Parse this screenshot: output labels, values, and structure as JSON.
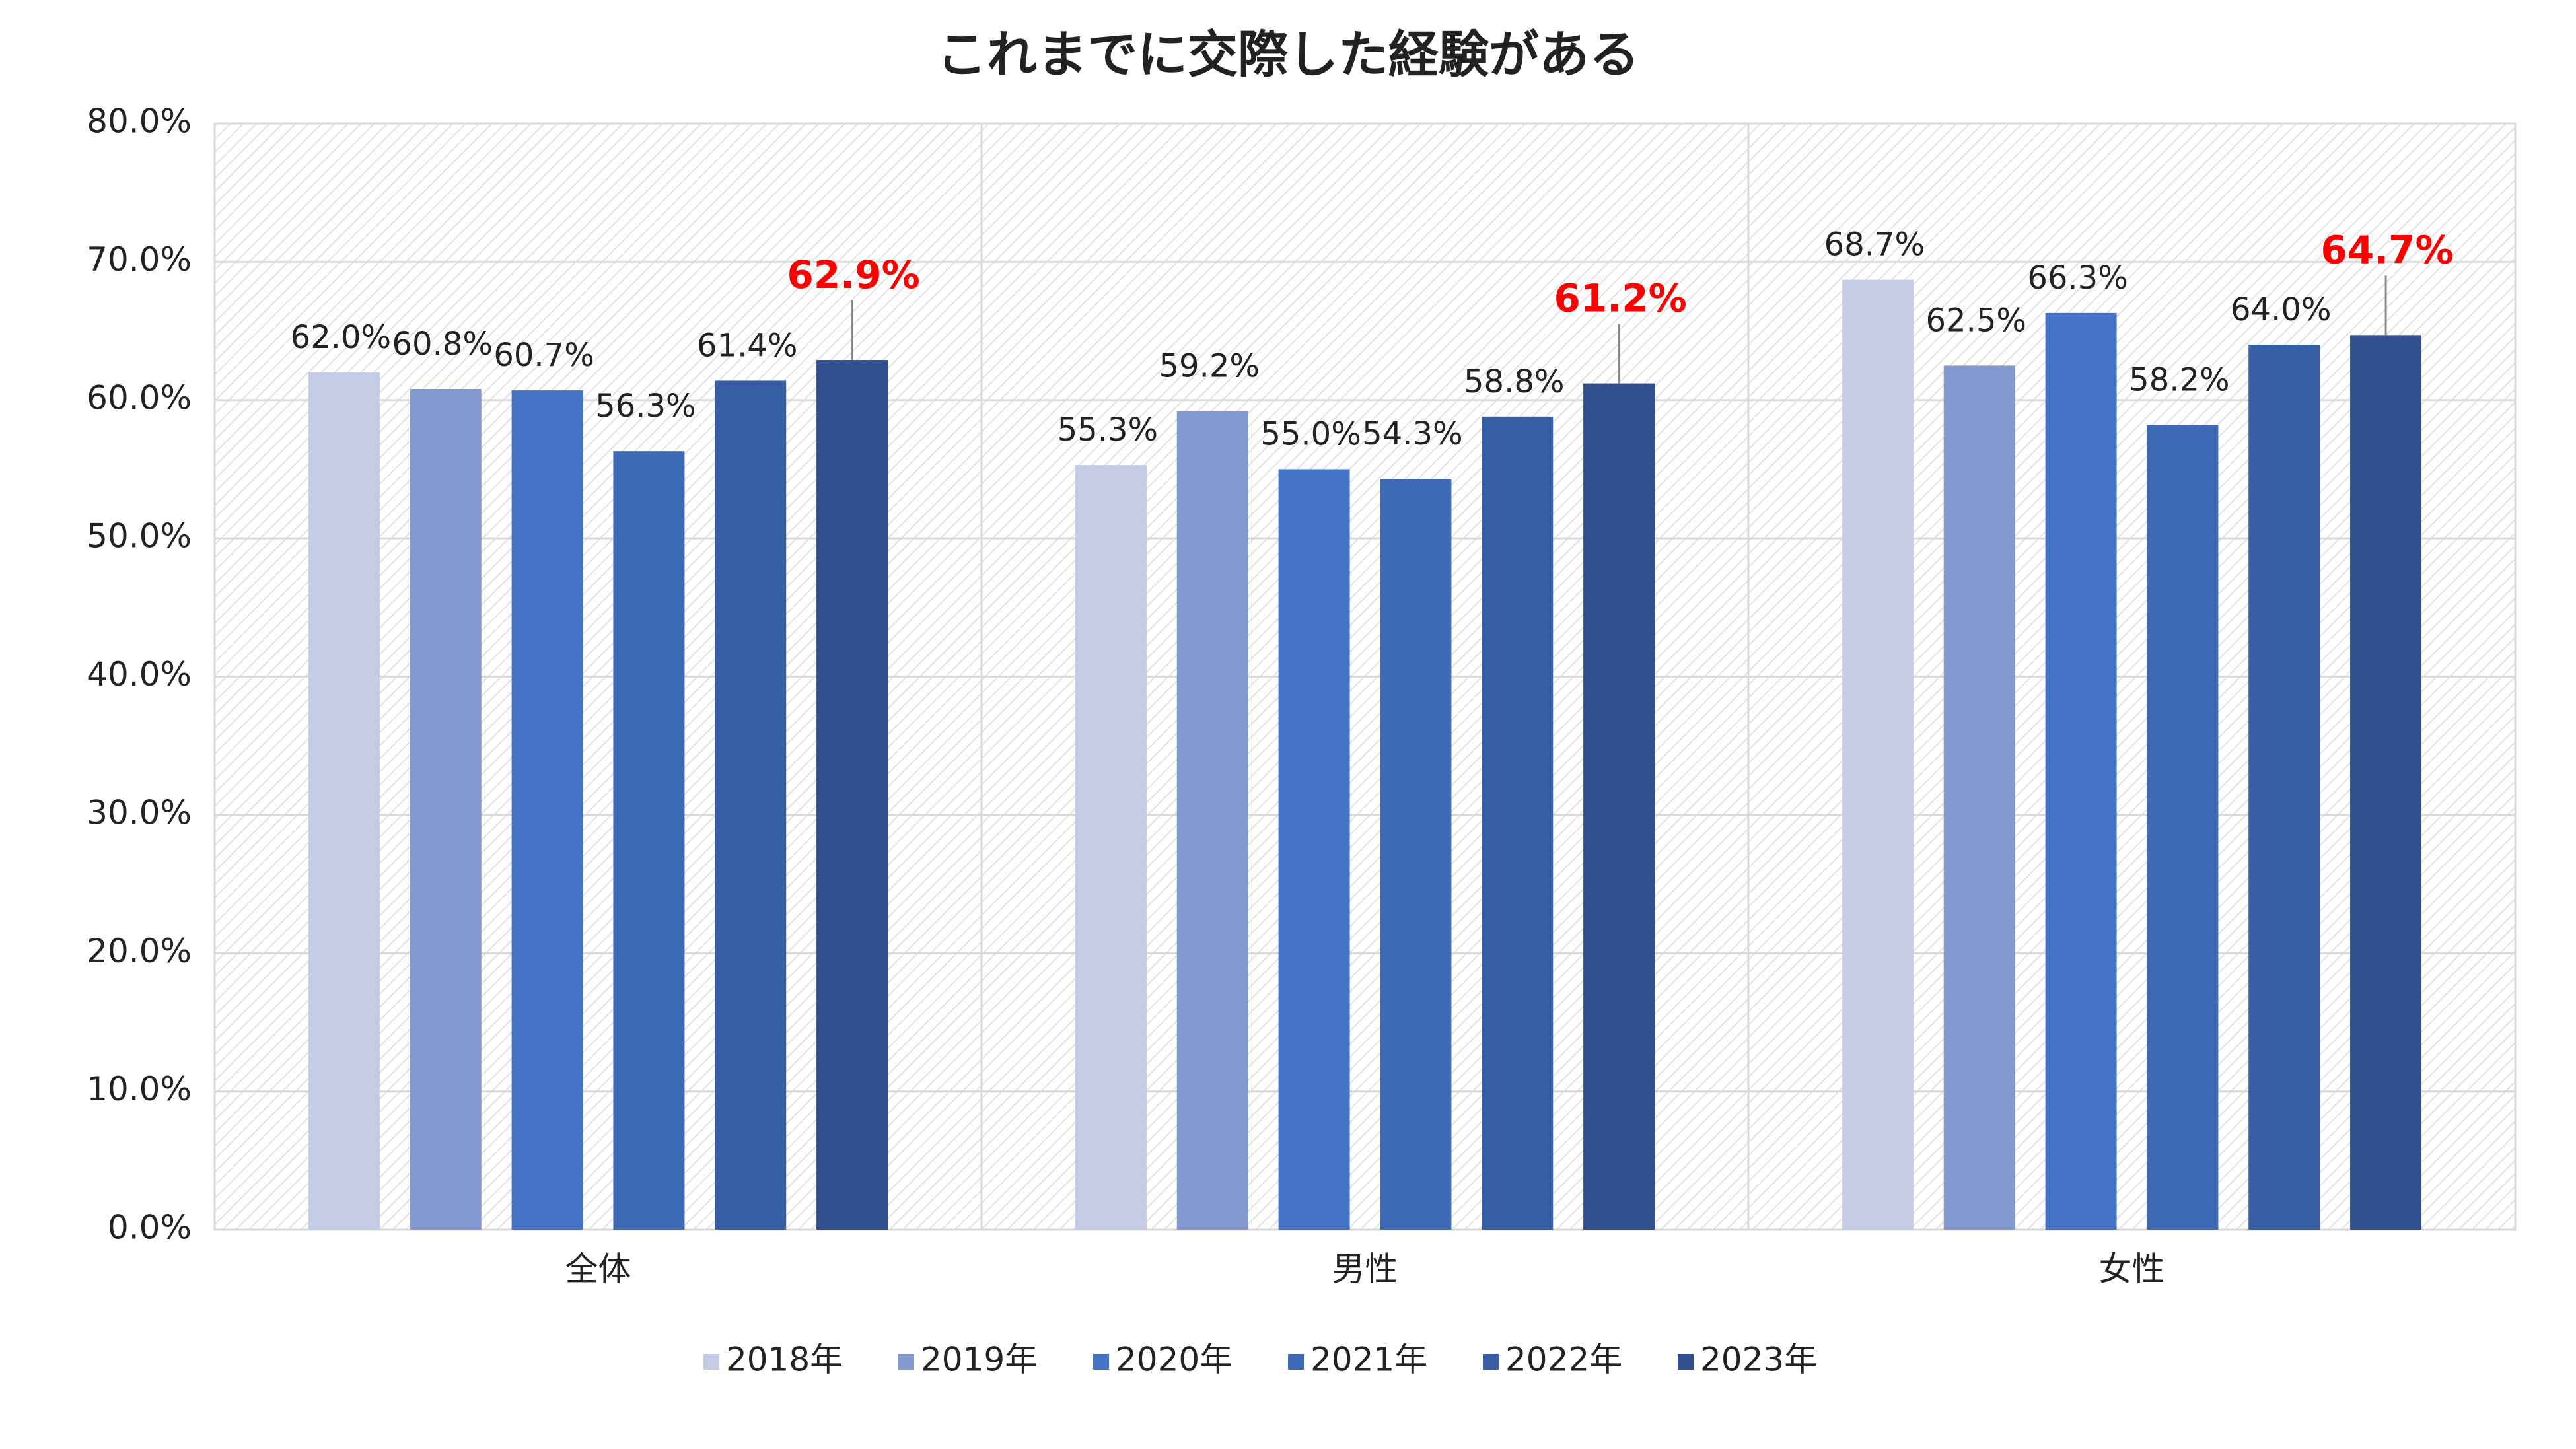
{
  "chart_data": {
    "type": "bar",
    "title": "これまでに交際した経験がある",
    "categories": [
      "全体",
      "男性",
      "女性"
    ],
    "series": [
      {
        "name": "2018年",
        "color": "#c5cde6",
        "values": [
          62.0,
          55.3,
          68.7
        ],
        "value_labels": [
          "62.0%",
          "55.3%",
          "68.7%"
        ]
      },
      {
        "name": "2019年",
        "color": "#8499d0",
        "values": [
          60.8,
          59.2,
          62.5
        ],
        "value_labels": [
          "60.8%",
          "59.2%",
          "62.5%"
        ]
      },
      {
        "name": "2020年",
        "color": "#4472c4",
        "values": [
          60.7,
          55.0,
          66.3
        ],
        "value_labels": [
          "60.7%",
          "55.0%",
          "66.3%"
        ]
      },
      {
        "name": "2021年",
        "color": "#3e69b5",
        "values": [
          56.3,
          54.3,
          58.2
        ],
        "value_labels": [
          "56.3%",
          "54.3%",
          "58.2%"
        ]
      },
      {
        "name": "2022年",
        "color": "#375ea3",
        "values": [
          61.4,
          58.8,
          64.0
        ],
        "value_labels": [
          "61.4%",
          "58.8%",
          "64.0%"
        ]
      },
      {
        "name": "2023年",
        "color": "#2f4f8d",
        "values": [
          62.9,
          61.2,
          64.7
        ],
        "value_labels": [
          "62.9%",
          "61.2%",
          "64.7%"
        ],
        "label_color": "#ff0000"
      }
    ],
    "ylim": [
      0,
      80
    ],
    "yticks": [
      {
        "value": 0,
        "label": "0.0%"
      },
      {
        "value": 10,
        "label": "10.0%"
      },
      {
        "value": 20,
        "label": "20.0%"
      },
      {
        "value": 30,
        "label": "30.0%"
      },
      {
        "value": 40,
        "label": "40.0%"
      },
      {
        "value": 50,
        "label": "50.0%"
      },
      {
        "value": 60,
        "label": "60.0%"
      },
      {
        "value": 70,
        "label": "70.0%"
      },
      {
        "value": 80,
        "label": "80.0%"
      }
    ],
    "grid": true,
    "legend": "bottom"
  }
}
